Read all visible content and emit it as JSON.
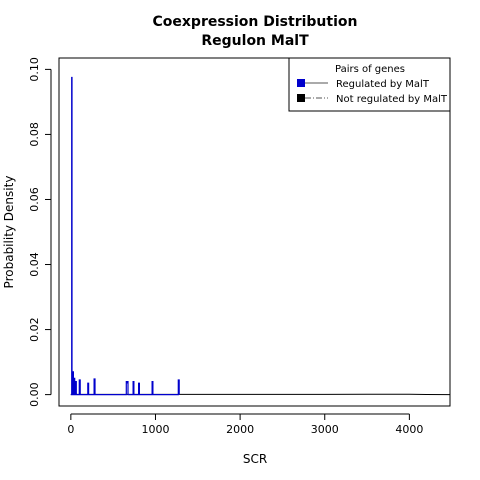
{
  "chart_data": {
    "type": "line",
    "title": "Coexpression Distribution",
    "subtitle": "Regulon MalT",
    "xlabel": "SCR",
    "ylabel": "Probability Density",
    "xlim": [
      -140,
      4480
    ],
    "ylim": [
      -0.0035,
      0.1035
    ],
    "xticks": [
      0,
      1000,
      2000,
      3000,
      4000
    ],
    "xtick_labels": [
      "0",
      "1000",
      "2000",
      "3000",
      "4000"
    ],
    "yticks": [
      0.0,
      0.02,
      0.04,
      0.06,
      0.08,
      0.1
    ],
    "ytick_labels": [
      "0.00",
      "0.02",
      "0.04",
      "0.06",
      "0.08",
      "0.10"
    ],
    "grid": false,
    "legend": {
      "title": "Pairs of genes",
      "placement": "top-right",
      "entries": [
        "Regulated by  MalT",
        "Not regulated by  MalT"
      ]
    },
    "series": [
      {
        "name": "Regulated by  MalT",
        "color": "#0000cc",
        "x": [
          0,
          10,
          10,
          14,
          14,
          22,
          22,
          30,
          30,
          38,
          38,
          46,
          46,
          55,
          55,
          65,
          65,
          100,
          100,
          110,
          110,
          200,
          200,
          210,
          210,
          275,
          275,
          285,
          285,
          655,
          655,
          662,
          662,
          668,
          668,
          675,
          675,
          735,
          735,
          745,
          745,
          800,
          800,
          810,
          810,
          960,
          960,
          970,
          970,
          1270,
          1270,
          1280,
          1280
        ],
        "y": [
          0,
          0,
          0.0975,
          0.0975,
          0,
          0,
          0.007,
          0.007,
          0,
          0,
          0.005,
          0.005,
          0,
          0,
          0.004,
          0.004,
          0,
          0,
          0.0045,
          0.0045,
          0,
          0,
          0.0035,
          0.0035,
          0,
          0,
          0.0048,
          0.0048,
          0,
          0,
          0.004,
          0.004,
          0.0036,
          0.0036,
          0.004,
          0.004,
          0,
          0,
          0.004,
          0.004,
          0,
          0,
          0.0035,
          0.0035,
          0,
          0,
          0.004,
          0.004,
          0,
          0,
          0.0045,
          0.0045,
          0
        ]
      },
      {
        "name": "Not regulated by  MalT",
        "color": "#000000",
        "x": [
          0,
          1000,
          2000,
          3000,
          3500,
          4000,
          4200,
          4480
        ],
        "y": [
          8e-05,
          8e-05,
          8e-05,
          8e-05,
          0.00012,
          0.00012,
          5e-05,
          0.0
        ]
      }
    ]
  }
}
